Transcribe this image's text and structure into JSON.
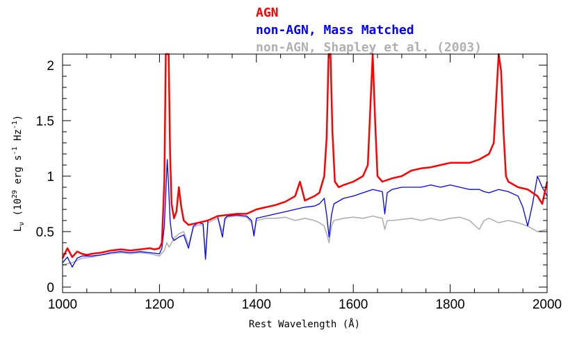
{
  "chart_data": {
    "type": "line",
    "xlabel": "Rest Wavelength (Å)",
    "ylabel_main": "L",
    "ylabel_sub": "ν",
    "ylabel_rest": " (10",
    "ylabel_exp1": "29",
    "ylabel_mid": " erg s",
    "ylabel_exp2": "-1",
    "ylabel_hz": " Hz",
    "ylabel_exp3": "-1",
    "ylabel_close": ")",
    "xlim": [
      1000,
      2000
    ],
    "ylim": [
      -0.05,
      2.1
    ],
    "x_ticks": [
      1000,
      1200,
      1400,
      1600,
      1800,
      2000
    ],
    "x_tick_labels": [
      "1000",
      "1200",
      "1400",
      "1600",
      "1800",
      "2000"
    ],
    "y_ticks": [
      0,
      0.5,
      1,
      1.5,
      2
    ],
    "y_tick_labels": [
      "0",
      "0.5",
      "1",
      "1.5",
      "2"
    ],
    "grid": false,
    "legend_placement": "top-center, above plot",
    "series": [
      {
        "name": "AGN",
        "color": "#ff0000",
        "x": [
          1000,
          1010,
          1020,
          1030,
          1040,
          1050,
          1060,
          1080,
          1100,
          1120,
          1140,
          1160,
          1180,
          1190,
          1200,
          1205,
          1210,
          1213,
          1216,
          1219,
          1222,
          1225,
          1230,
          1235,
          1240,
          1245,
          1250,
          1260,
          1270,
          1280,
          1300,
          1320,
          1340,
          1360,
          1380,
          1400,
          1420,
          1440,
          1460,
          1480,
          1490,
          1500,
          1510,
          1520,
          1530,
          1540,
          1545,
          1549,
          1553,
          1557,
          1562,
          1570,
          1580,
          1600,
          1620,
          1630,
          1635,
          1640,
          1645,
          1650,
          1660,
          1680,
          1700,
          1720,
          1740,
          1760,
          1780,
          1800,
          1820,
          1840,
          1860,
          1880,
          1890,
          1900,
          1905,
          1910,
          1915,
          1920,
          1940,
          1960,
          1980,
          1990,
          2000
        ],
        "y": [
          0.26,
          0.35,
          0.27,
          0.32,
          0.3,
          0.29,
          0.3,
          0.31,
          0.33,
          0.34,
          0.33,
          0.34,
          0.35,
          0.34,
          0.35,
          0.4,
          0.95,
          2.1,
          2.1,
          2.1,
          1.2,
          0.75,
          0.62,
          0.68,
          0.9,
          0.72,
          0.6,
          0.56,
          0.57,
          0.58,
          0.6,
          0.64,
          0.65,
          0.66,
          0.66,
          0.7,
          0.72,
          0.74,
          0.77,
          0.82,
          0.95,
          0.78,
          0.8,
          0.82,
          0.85,
          1.0,
          1.35,
          2.1,
          2.1,
          1.4,
          0.95,
          0.9,
          0.92,
          0.95,
          1.0,
          1.1,
          1.6,
          2.1,
          1.5,
          1.0,
          0.95,
          0.98,
          1.0,
          1.05,
          1.07,
          1.08,
          1.1,
          1.12,
          1.12,
          1.12,
          1.15,
          1.2,
          1.3,
          2.1,
          1.95,
          1.4,
          1.0,
          0.95,
          0.9,
          0.88,
          0.82,
          0.75,
          0.95
        ]
      },
      {
        "name": "non-AGN, Mass Matched",
        "color": "#0000ff",
        "x": [
          1000,
          1010,
          1020,
          1030,
          1040,
          1060,
          1080,
          1100,
          1120,
          1140,
          1160,
          1180,
          1200,
          1205,
          1210,
          1213,
          1216,
          1219,
          1222,
          1226,
          1230,
          1240,
          1250,
          1260,
          1270,
          1280,
          1290,
          1295,
          1300,
          1310,
          1320,
          1330,
          1335,
          1340,
          1360,
          1380,
          1390,
          1395,
          1400,
          1420,
          1440,
          1460,
          1480,
          1500,
          1520,
          1530,
          1540,
          1545,
          1550,
          1555,
          1560,
          1580,
          1600,
          1620,
          1640,
          1660,
          1665,
          1670,
          1680,
          1700,
          1720,
          1740,
          1760,
          1780,
          1800,
          1820,
          1840,
          1860,
          1870,
          1880,
          1900,
          1920,
          1940,
          1950,
          1960,
          1970,
          1980,
          1990,
          2000
        ],
        "y": [
          0.22,
          0.27,
          0.18,
          0.26,
          0.28,
          0.28,
          0.29,
          0.31,
          0.32,
          0.31,
          0.32,
          0.31,
          0.3,
          0.35,
          0.55,
          0.85,
          1.15,
          0.9,
          0.6,
          0.45,
          0.42,
          0.45,
          0.47,
          0.35,
          0.55,
          0.58,
          0.57,
          0.25,
          0.6,
          0.62,
          0.64,
          0.45,
          0.62,
          0.64,
          0.65,
          0.64,
          0.6,
          0.46,
          0.62,
          0.64,
          0.66,
          0.68,
          0.7,
          0.72,
          0.73,
          0.75,
          0.8,
          0.65,
          0.45,
          0.65,
          0.75,
          0.8,
          0.82,
          0.85,
          0.88,
          0.86,
          0.66,
          0.85,
          0.88,
          0.9,
          0.9,
          0.9,
          0.92,
          0.9,
          0.92,
          0.9,
          0.88,
          0.88,
          0.86,
          0.85,
          0.88,
          0.86,
          0.82,
          0.72,
          0.55,
          0.75,
          1.0,
          0.9,
          0.82
        ]
      },
      {
        "name": "non-AGN, Shapley et al. (2003)",
        "color": "#b0b0b0",
        "x": [
          1000,
          1020,
          1040,
          1060,
          1080,
          1100,
          1120,
          1140,
          1160,
          1180,
          1200,
          1210,
          1215,
          1220,
          1225,
          1230,
          1240,
          1250,
          1260,
          1270,
          1280,
          1290,
          1295,
          1300,
          1320,
          1330,
          1335,
          1340,
          1360,
          1380,
          1390,
          1395,
          1400,
          1420,
          1440,
          1460,
          1480,
          1500,
          1520,
          1530,
          1540,
          1545,
          1550,
          1555,
          1560,
          1580,
          1600,
          1620,
          1640,
          1660,
          1665,
          1670,
          1680,
          1700,
          1720,
          1740,
          1760,
          1780,
          1800,
          1820,
          1840,
          1850,
          1860,
          1870,
          1880,
          1900,
          1920,
          1940,
          1960,
          1980,
          2000
        ],
        "y": [
          0.2,
          0.22,
          0.26,
          0.27,
          0.29,
          0.3,
          0.31,
          0.3,
          0.31,
          0.3,
          0.28,
          0.33,
          0.4,
          0.36,
          0.4,
          0.44,
          0.48,
          0.5,
          0.38,
          0.54,
          0.56,
          0.56,
          0.3,
          0.58,
          0.62,
          0.5,
          0.6,
          0.63,
          0.64,
          0.63,
          0.58,
          0.48,
          0.6,
          0.62,
          0.62,
          0.63,
          0.6,
          0.62,
          0.6,
          0.58,
          0.55,
          0.48,
          0.4,
          0.55,
          0.6,
          0.62,
          0.63,
          0.62,
          0.64,
          0.62,
          0.52,
          0.6,
          0.6,
          0.61,
          0.62,
          0.6,
          0.62,
          0.6,
          0.62,
          0.63,
          0.6,
          0.56,
          0.52,
          0.6,
          0.62,
          0.58,
          0.6,
          0.58,
          0.55,
          0.5,
          0.52
        ]
      }
    ]
  }
}
